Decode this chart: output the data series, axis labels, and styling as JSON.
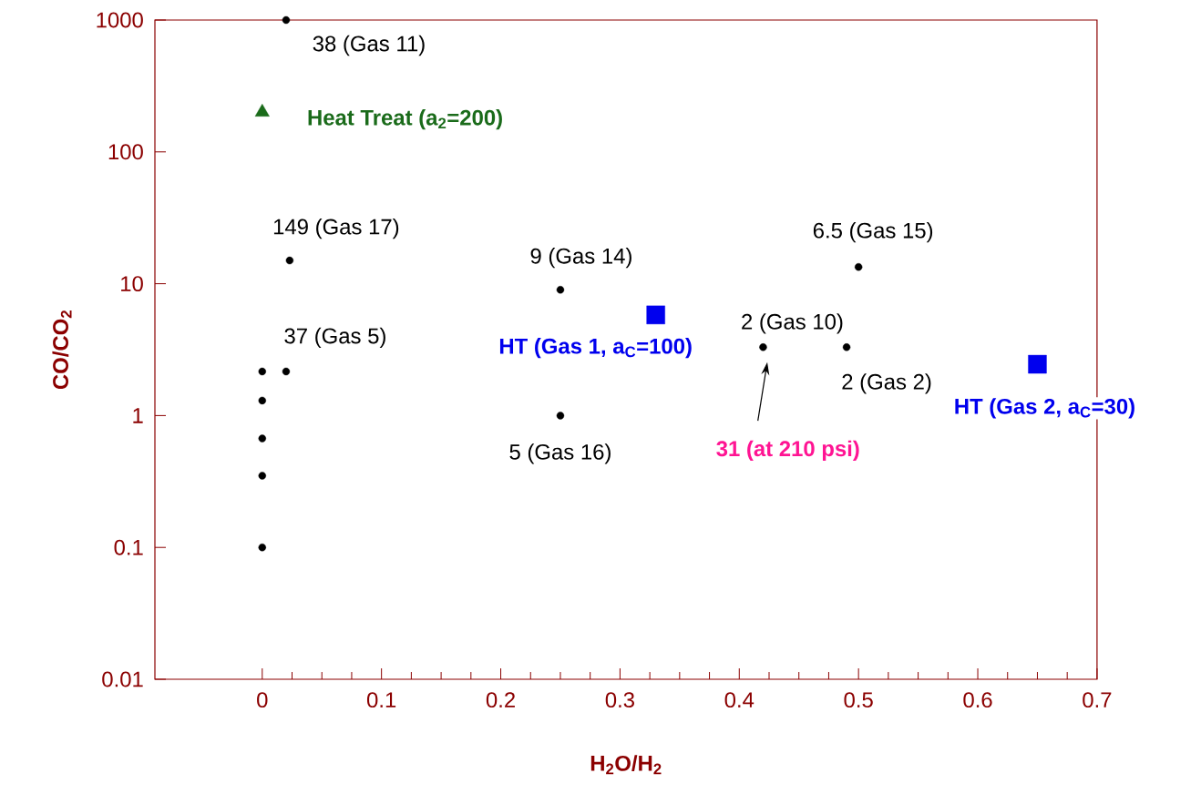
{
  "chart_data": {
    "type": "scatter",
    "xlabel": "H$_{2}$O/H$_{2}$",
    "ylabel": "CO/CO$_{2}$",
    "log": "y",
    "xlim": [
      -0.09,
      0.7
    ],
    "ylim": [
      0.01,
      1000
    ],
    "xticks": [
      0,
      0.1,
      0.2,
      0.3,
      0.4,
      0.5,
      0.6,
      0.7
    ],
    "yticks": [
      0.01,
      0.1,
      1,
      10,
      100,
      1000
    ],
    "series": [
      {
        "color": "#000000",
        "marker": "circle",
        "x": [
          0.02,
          0.023,
          0.25,
          0.5,
          0.42,
          0.49,
          0.02,
          0.25,
          0,
          0,
          0,
          0,
          0
        ],
        "values": [
          1000,
          15,
          9,
          13.4,
          3.3,
          3.3,
          2.16,
          1,
          2.16,
          1.3,
          0.67,
          0.35,
          0.1
        ]
      },
      {
        "name": "Heat Treat (a$_{2}$=200)",
        "color": "#1a6b1a",
        "marker": "triangle",
        "x": [
          0
        ],
        "values": [
          200
        ]
      },
      {
        "name": "HT (Gas 1, a$_{C}$=100)",
        "color": "#0000ee",
        "marker": "square",
        "x": [
          0.33
        ],
        "values": [
          5.8
        ]
      },
      {
        "name": "HT (Gas 2, a$_{C}$=30)",
        "color": "#0000ee",
        "marker": "square",
        "x": [
          0.65
        ],
        "values": [
          2.45
        ]
      }
    ],
    "annotations": [
      {
        "text": "38 (Gas 11)",
        "x": 0.02,
        "y": 1000
      },
      {
        "text": "149 (Gas 17)",
        "x": 0.023,
        "y": 15
      },
      {
        "text": "9 (Gas 14)",
        "x": 0.25,
        "y": 9
      },
      {
        "text": "6.5 (Gas 15)",
        "x": 0.5,
        "y": 13.4
      },
      {
        "text": "2 (Gas 10)",
        "x": 0.42,
        "y": 3.3
      },
      {
        "text": "2 (Gas 2)",
        "x": 0.49,
        "y": 3.3
      },
      {
        "text": "37 (Gas 5)",
        "x": 0.02,
        "y": 2.16
      },
      {
        "text": "5 (Gas 16)",
        "x": 0.25,
        "y": 1
      },
      "31 (at 210 psi)"
    ]
  }
}
